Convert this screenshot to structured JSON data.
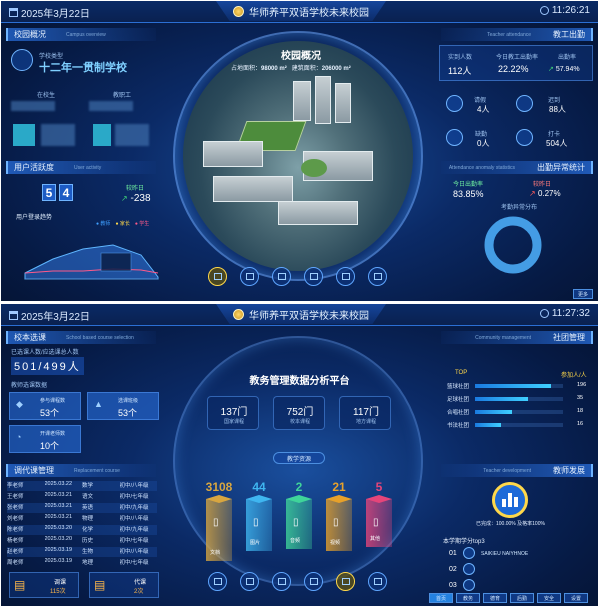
{
  "screen1": {
    "date": "2025年3月22日",
    "title": "华师养平双语学校未来校园",
    "time": "11:26:21",
    "campus_overview": {
      "title": "校园概况",
      "en": "Campus overview",
      "school_type_label": "学校类型",
      "school_type": "十二年一贯制学校",
      "label_a": "在校生",
      "label_b": "教职工"
    },
    "center": {
      "title": "校园概况",
      "area_label": "占地面积：",
      "area_value": "98000 m²",
      "build_label": "建筑面积：",
      "build_value": "206000 m²"
    },
    "staff_attendance": {
      "title": "教工出勤",
      "en": "Teacher attendance",
      "expected_label": "实到人数",
      "expected_value": "112人",
      "rate_label": "今日教工出勤率",
      "rate_value": "22.22%",
      "rate2_label": "出勤率",
      "rate2_value": "57.94%",
      "items": [
        {
          "label": "请假",
          "value": "4人"
        },
        {
          "label": "迟到",
          "value": "88人"
        },
        {
          "label": "缺勤",
          "value": "0人"
        },
        {
          "label": "打卡",
          "value": "504人"
        }
      ]
    },
    "user_activity": {
      "title": "用户活跃度",
      "en": "User activity",
      "digits": [
        "5",
        "4"
      ],
      "login_label": "较昨日",
      "login_value": "-238",
      "trend_title": "用户登录趋势",
      "legend": [
        "教师",
        "家长",
        "学生"
      ]
    },
    "attendance_stats": {
      "title": "出勤异常统计",
      "en": "Attendance anomaly statistics",
      "today_label": "今日出勤率",
      "today_value": "83.85%",
      "late_label": "较昨日",
      "late_value": "0.27%",
      "donut_title": "考勤异常分布"
    },
    "more_label": "更多"
  },
  "screen2": {
    "date": "2025年3月22日",
    "title": "华师养平双语学校未来校园",
    "time": "11:27:32",
    "course_select": {
      "title": "校本选课",
      "en": "School based course selection",
      "enroll_label": "已选课人数/应选课总人数",
      "enroll_value": "501/499人",
      "stat_label": "教师选课数据",
      "cards": [
        {
          "label": "参与课程数",
          "value": "53个"
        },
        {
          "label": "选课班级",
          "value": "53个"
        },
        {
          "label": "开课老师数",
          "value": "10个"
        }
      ]
    },
    "replacement": {
      "title": "调代课管理",
      "en": "Replacement course",
      "rows": [
        [
          "李老师",
          "2025.03.22",
          "数学",
          "初中/八年级"
        ],
        [
          "王老师",
          "2025.03.21",
          "语文",
          "初中/七年级"
        ],
        [
          "张老师",
          "2025.03.21",
          "英语",
          "初中/九年级"
        ],
        [
          "刘老师",
          "2025.03.21",
          "物理",
          "初中/八年级"
        ],
        [
          "陈老师",
          "2025.03.20",
          "化学",
          "初中/九年级"
        ],
        [
          "杨老师",
          "2025.03.20",
          "历史",
          "初中/七年级"
        ],
        [
          "赵老师",
          "2025.03.19",
          "生物",
          "初中/八年级"
        ],
        [
          "周老师",
          "2025.03.19",
          "地理",
          "初中/七年级"
        ]
      ],
      "bottom": [
        {
          "label": "调课",
          "value": "115次"
        },
        {
          "label": "代课",
          "value": "2次"
        }
      ]
    },
    "center": {
      "title": "教务管理数据分析平台",
      "kpis": [
        {
          "value": "137门",
          "label": "国家课程"
        },
        {
          "value": "752门",
          "label": "校本课程"
        },
        {
          "value": "117门",
          "label": "地方课程"
        }
      ],
      "resource_label": "教学资源",
      "prisms": [
        {
          "value": "3108",
          "label": "文档",
          "color": "#d8a640"
        },
        {
          "value": "44",
          "label": "图片",
          "color": "#3fb6f0"
        },
        {
          "value": "2",
          "label": "音频",
          "color": "#3fd49a"
        },
        {
          "value": "21",
          "label": "视频",
          "color": "#e7a12a"
        },
        {
          "value": "5",
          "label": "其他",
          "color": "#e5457a"
        }
      ]
    },
    "community": {
      "title": "社团管理",
      "en": "Community management",
      "top_label": "TOP",
      "count_label": "参加人/人",
      "rows": [
        {
          "name": "篮球社团",
          "value": "196",
          "pct": 0.86
        },
        {
          "name": "足球社团",
          "value": "35",
          "pct": 0.6
        },
        {
          "name": "合唱社团",
          "value": "18",
          "pct": 0.42
        },
        {
          "name": "书法社团",
          "value": "16",
          "pct": 0.3
        }
      ]
    },
    "teacher_dev": {
      "title": "教师发展",
      "en": "Teacher development",
      "note": "已完成：100.00% 及格率100%",
      "top_title": "本学期学分top3",
      "tops": [
        {
          "rank": "01",
          "name": "SAIKIEU NAIYHNOE"
        },
        {
          "rank": "02",
          "name": ""
        },
        {
          "rank": "03",
          "name": ""
        }
      ]
    },
    "nav_tabs": [
      "首页",
      "教务",
      "德育",
      "后勤",
      "安全",
      "设置"
    ]
  },
  "colors": {
    "accent": "#3fa0ff",
    "gold": "#ffd84a",
    "up": "#3fd07a",
    "down": "#ff5a5a"
  }
}
